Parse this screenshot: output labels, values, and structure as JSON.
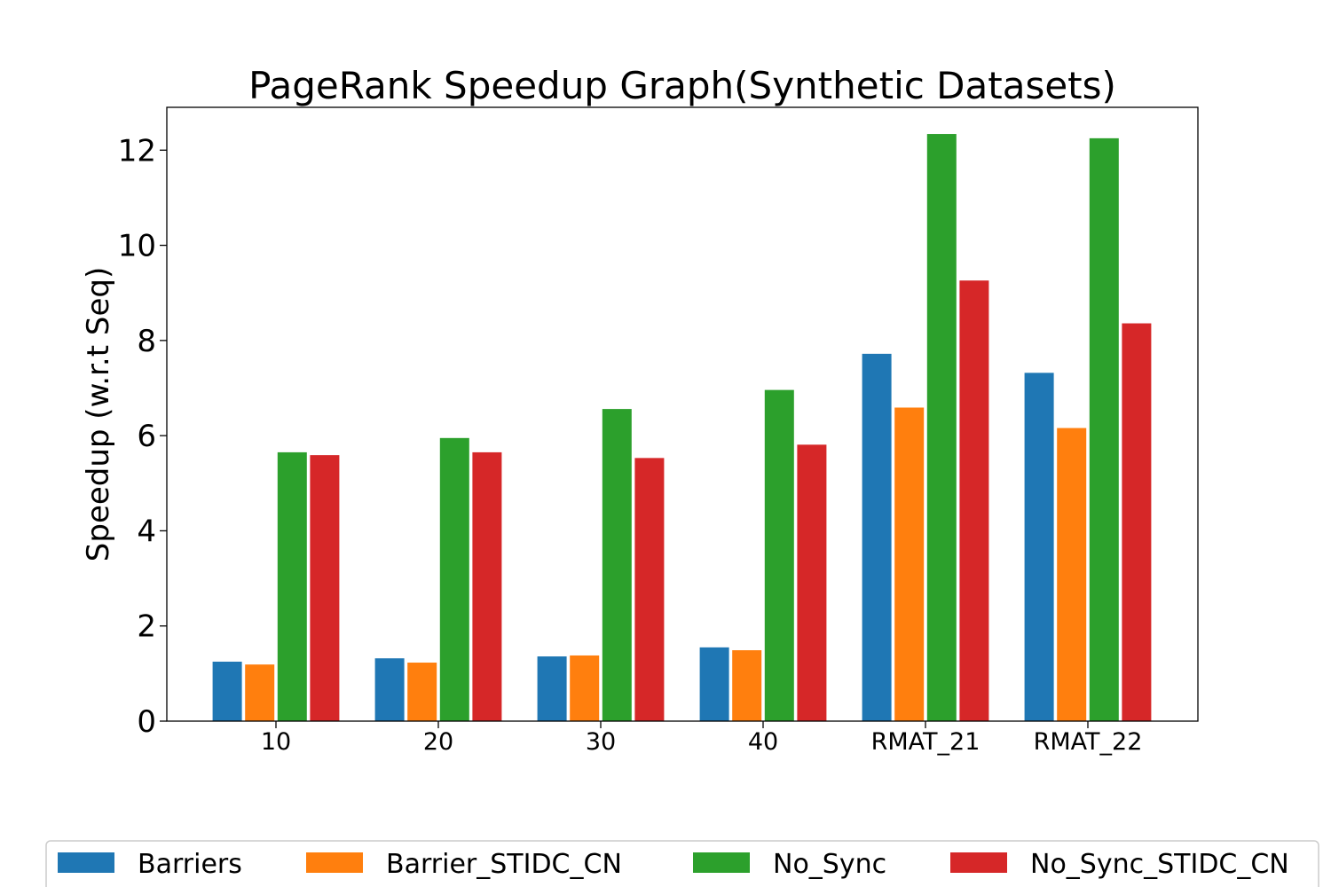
{
  "chart_data": {
    "type": "bar",
    "title": "PageRank Speedup Graph(Synthetic Datasets)",
    "xlabel": "",
    "ylabel": "Speedup (w.r.t Seq)",
    "ylim": [
      0,
      12.9
    ],
    "yticks": [
      0,
      2,
      4,
      6,
      8,
      10,
      12
    ],
    "categories": [
      "10",
      "20",
      "30",
      "40",
      "RMAT_21",
      "RMAT_22"
    ],
    "series": [
      {
        "name": "Barriers",
        "color": "#1f77b4",
        "values": [
          1.25,
          1.32,
          1.36,
          1.55,
          7.72,
          7.32
        ]
      },
      {
        "name": "Barrier_STIDC_CN",
        "color": "#ff7f0e",
        "values": [
          1.19,
          1.23,
          1.38,
          1.49,
          6.59,
          6.16
        ]
      },
      {
        "name": "No_Sync",
        "color": "#2ca02c",
        "values": [
          5.65,
          5.95,
          6.56,
          6.96,
          12.34,
          12.25
        ]
      },
      {
        "name": "No_Sync_STIDC_CN",
        "color": "#d62728",
        "values": [
          5.59,
          5.65,
          5.53,
          5.81,
          9.26,
          8.36
        ]
      }
    ],
    "grid": false,
    "legend_position": "bottom"
  }
}
